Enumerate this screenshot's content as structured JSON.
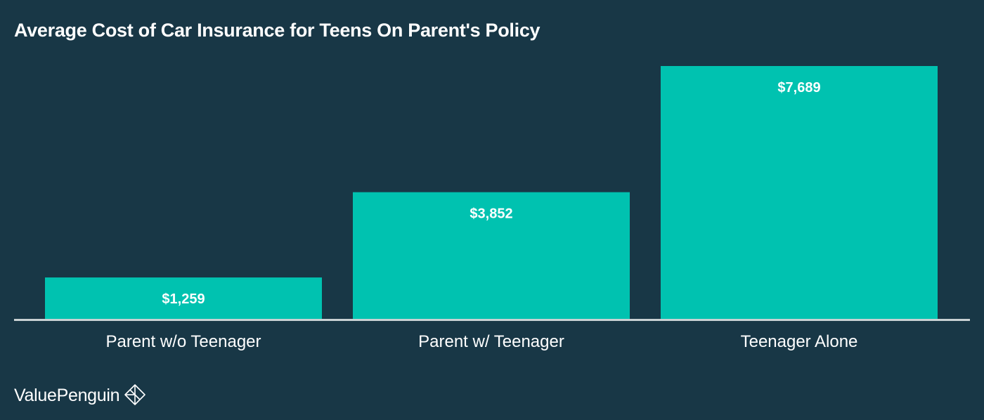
{
  "colors": {
    "background": "#183746",
    "bar": "#00c2b0",
    "baseline": "#c9d1d3",
    "text": "#ffffff"
  },
  "brand": {
    "name": "ValuePenguin",
    "icon": "penguin-logo-icon"
  },
  "chart_data": {
    "type": "bar",
    "title": "Average Cost of Car Insurance for Teens On Parent's Policy",
    "xlabel": "",
    "ylabel": "",
    "categories": [
      "Parent w/o Teenager",
      "Parent w/ Teenager",
      "Teenager Alone"
    ],
    "values": [
      1259,
      3852,
      7689
    ],
    "data_labels": [
      "$1,259",
      "$3,852",
      "$7,689"
    ],
    "ylim": [
      0,
      7689
    ],
    "grid": false,
    "legend": "none"
  }
}
